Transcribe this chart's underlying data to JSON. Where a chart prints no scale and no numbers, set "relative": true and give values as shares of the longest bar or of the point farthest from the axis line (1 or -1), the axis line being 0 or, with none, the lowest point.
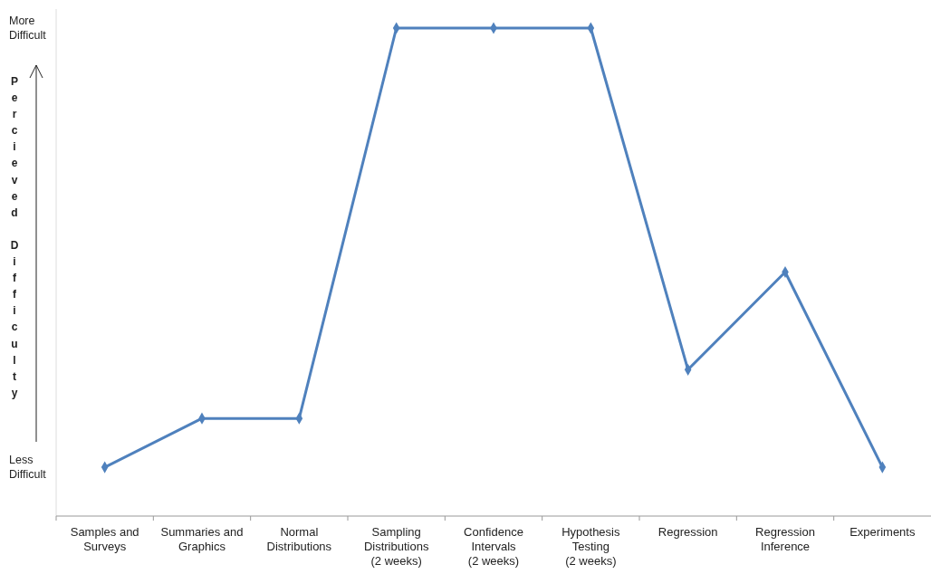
{
  "chart_data": {
    "type": "line",
    "relative": true,
    "ylabel": "Percieved Difficulty",
    "annotations": [
      "More Difficult",
      "Less Difficult"
    ],
    "categories": [
      "Samples and Surveys",
      "Summaries and Graphics",
      "Normal Distributions",
      "Sampling Distributions (2 weeks)",
      "Confidence Intervals (2 weeks)",
      "Hypothesis Testing (2 weeks)",
      "Regression",
      "Regression Inference",
      "Experiments"
    ],
    "series": [
      {
        "color": "#4f81bd",
        "values": [
          0.1,
          0.2,
          0.2,
          1,
          1,
          1,
          0.3,
          0.5,
          0.1
        ]
      }
    ],
    "marker": "diamond",
    "line_style": "solid"
  }
}
